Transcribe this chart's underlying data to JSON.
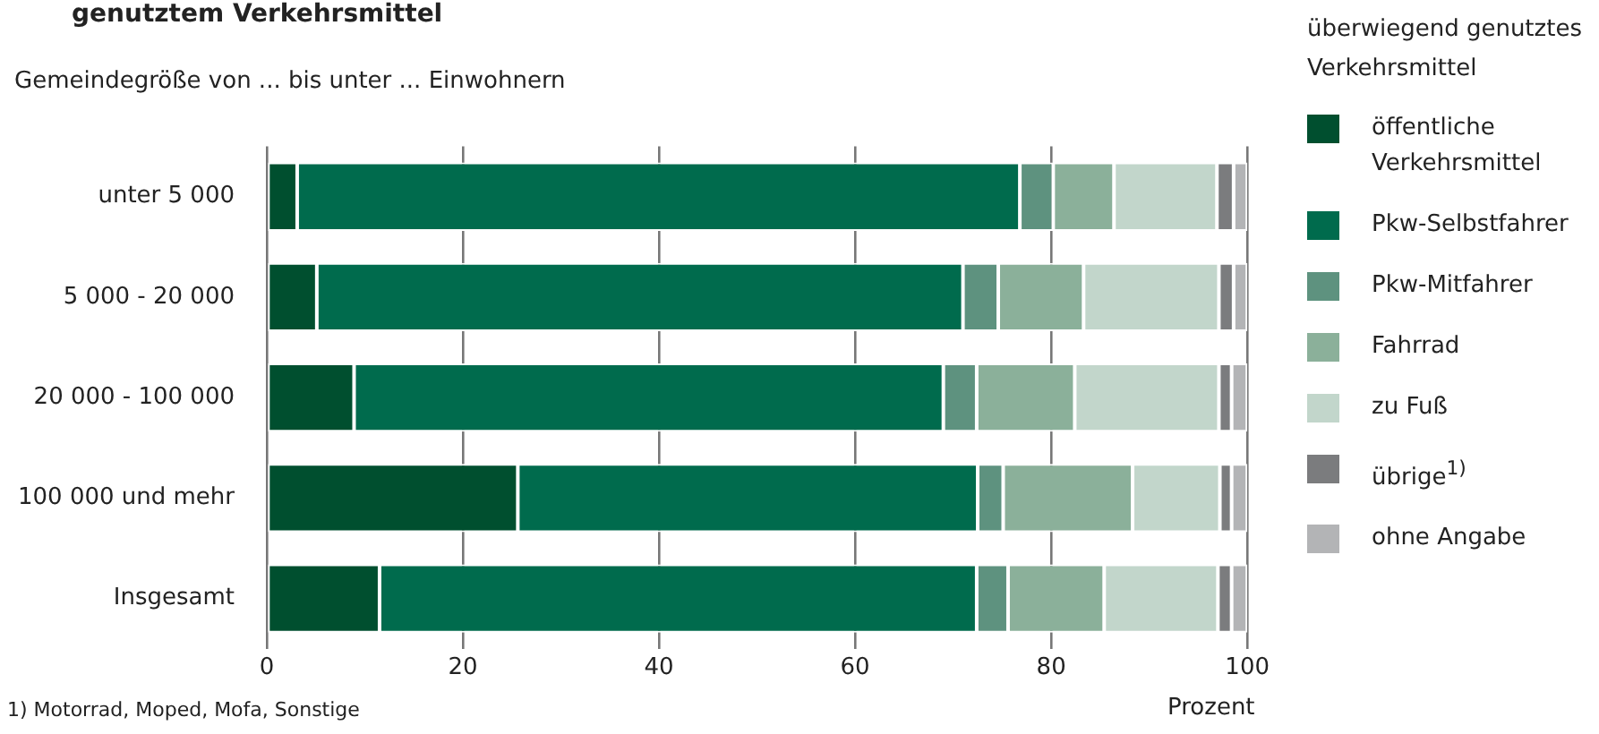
{
  "chart_data": {
    "type": "bar",
    "orientation": "horizontal",
    "stacked": true,
    "title": "genutztem Verkehrsmittel",
    "ylabel": "Gemeindegröße von ... bis unter ... Einwohnern",
    "xlabel": "Prozent",
    "legend_title": "überwiegend genutztes Verkehrsmittel",
    "legend": "right",
    "grid": "x",
    "categories": [
      "unter 5 000",
      "5 000 - 20 000",
      "20 000 - 100 000",
      "100 000 und mehr",
      "Insgesamt"
    ],
    "xlim": [
      0,
      100
    ],
    "xticks": [
      0,
      20,
      40,
      60,
      80,
      100
    ],
    "series": [
      {
        "name": "öffentliche Verkehrsmittel",
        "color": "#004f2f",
        "values": [
          3.1,
          5.1,
          8.9,
          25.6,
          11.5
        ]
      },
      {
        "name": "Pkw-Selbstfahrer",
        "color": "#006b4d",
        "values": [
          73.7,
          65.9,
          60.1,
          46.9,
          60.9
        ]
      },
      {
        "name": "Pkw-Mitfahrer",
        "color": "#5e927f",
        "values": [
          3.4,
          3.6,
          3.4,
          2.6,
          3.2
        ]
      },
      {
        "name": "Fahrrad",
        "color": "#8bb09a",
        "values": [
          6.2,
          8.7,
          10.0,
          13.2,
          9.8
        ]
      },
      {
        "name": "zu Fuß",
        "color": "#c2d6cb",
        "values": [
          10.5,
          13.8,
          14.7,
          8.9,
          11.6
        ]
      },
      {
        "name": "übrige$^{1)}$",
        "color": "#7b7c7e",
        "values": [
          1.7,
          1.5,
          1.3,
          1.2,
          1.4
        ]
      },
      {
        "name": "ohne Angabe",
        "color": "#b3b4b6",
        "values": [
          1.4,
          1.4,
          1.6,
          1.6,
          1.6
        ]
      }
    ],
    "annotations": [
      "1) Motorrad, Moped, Mofa, Sonstige"
    ]
  }
}
